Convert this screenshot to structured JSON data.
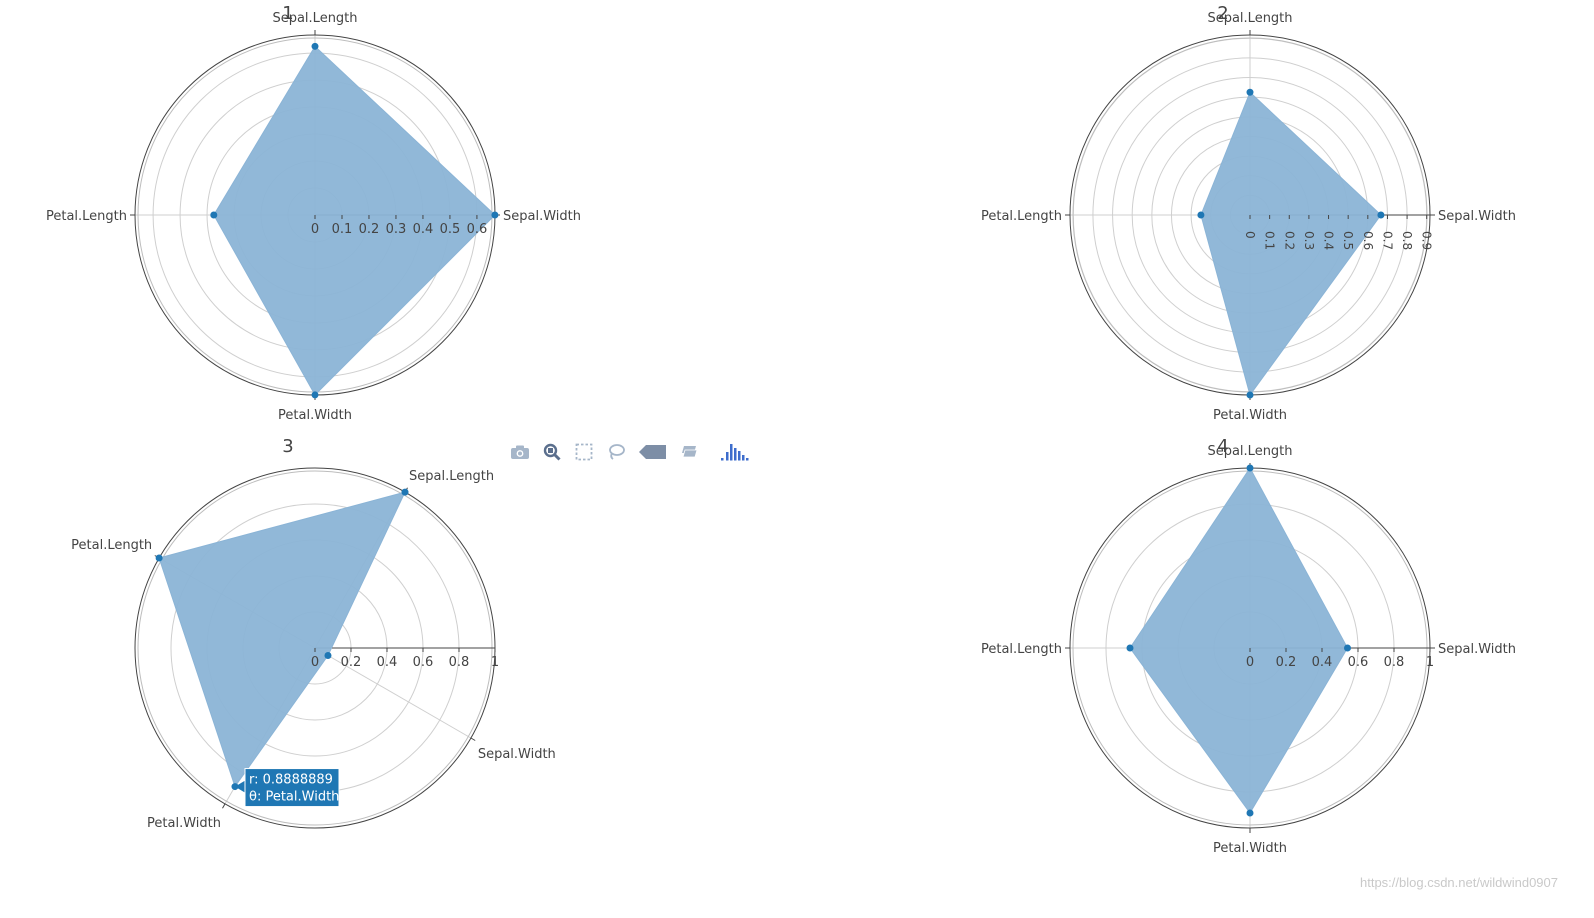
{
  "colors": {
    "fill": "#8bb4d6",
    "marker": "#1f77b4",
    "grid": "#cfcfcf",
    "axis": "#444444",
    "text": "#444444",
    "hover_bg": "#1f77b4",
    "hover_text": "#ffffff",
    "modebar_icon": "#a6b6c9",
    "modebar_active": "#3e6dcc"
  },
  "modebar": [
    {
      "name": "camera-icon",
      "title": "Download plot as a png"
    },
    {
      "name": "zoom-icon",
      "title": "Zoom"
    },
    {
      "name": "box-select-icon",
      "title": "Box Select"
    },
    {
      "name": "lasso-select-icon",
      "title": "Lasso Select"
    },
    {
      "name": "hover-closest-icon",
      "title": "Show closest data on hover"
    },
    {
      "name": "hover-compare-icon",
      "title": "Compare data on hover"
    },
    {
      "name": "plotly-logo-icon",
      "title": "Produced with Plotly"
    }
  ],
  "watermark": "https://blog.csdn.net/wildwind0907",
  "chart_data": [
    {
      "type": "polar",
      "title": "1",
      "categories": [
        "Sepal.Length",
        "Sepal.Width",
        "Petal.Width",
        "Petal.Length"
      ],
      "angles_deg": [
        90,
        0,
        -90,
        180
      ],
      "values": [
        0.625,
        0.6667,
        0.6667,
        0.375
      ],
      "radial_range": [
        0,
        0.667
      ],
      "tick_values": [
        0,
        0.1,
        0.2,
        0.3,
        0.4,
        0.5,
        0.6
      ],
      "tick_labels": [
        "0",
        "0.1",
        "0.2",
        "0.3",
        "0.4",
        "0.5",
        "0.6"
      ],
      "tick_rotate": false
    },
    {
      "type": "polar",
      "title": "2",
      "categories": [
        "Sepal.Length",
        "Sepal.Width",
        "Petal.Width",
        "Petal.Length"
      ],
      "angles_deg": [
        90,
        0,
        -90,
        180
      ],
      "values": [
        0.625,
        0.6667,
        0.9167,
        0.25
      ],
      "radial_range": [
        0,
        0.9167
      ],
      "tick_values": [
        0,
        0.1,
        0.2,
        0.3,
        0.4,
        0.5,
        0.6,
        0.7,
        0.8,
        0.9
      ],
      "tick_labels": [
        "0",
        "0.1",
        "0.2",
        "0.3",
        "0.4",
        "0.5",
        "0.6",
        "0.7",
        "0.8",
        "0.9"
      ],
      "tick_rotate": true
    },
    {
      "type": "polar",
      "title": "3",
      "categories": [
        "Sepal.Length",
        "Sepal.Width",
        "Petal.Width",
        "Petal.Length"
      ],
      "angles_deg": [
        60,
        -30,
        -120,
        150
      ],
      "values": [
        1.0,
        0.0833,
        0.8888889,
        1.0
      ],
      "radial_range": [
        0,
        1.0
      ],
      "tick_values": [
        0,
        0.2,
        0.4,
        0.6,
        0.8,
        1
      ],
      "tick_labels": [
        "0",
        "0.2",
        "0.4",
        "0.6",
        "0.8",
        "1"
      ],
      "tick_rotate": false,
      "hover": {
        "r_label": "r: 0.8888889",
        "theta_label": "θ: Petal.Width"
      }
    },
    {
      "type": "polar",
      "title": "4",
      "categories": [
        "Sepal.Length",
        "Sepal.Width",
        "Petal.Width",
        "Petal.Length"
      ],
      "angles_deg": [
        90,
        0,
        -90,
        180
      ],
      "values": [
        1.0,
        0.5417,
        0.9167,
        0.6667
      ],
      "radial_range": [
        0,
        1.0
      ],
      "tick_values": [
        0,
        0.2,
        0.4,
        0.6,
        0.8,
        1
      ],
      "tick_labels": [
        "0",
        "0.2",
        "0.4",
        "0.6",
        "0.8",
        "1"
      ],
      "tick_rotate": false
    }
  ]
}
